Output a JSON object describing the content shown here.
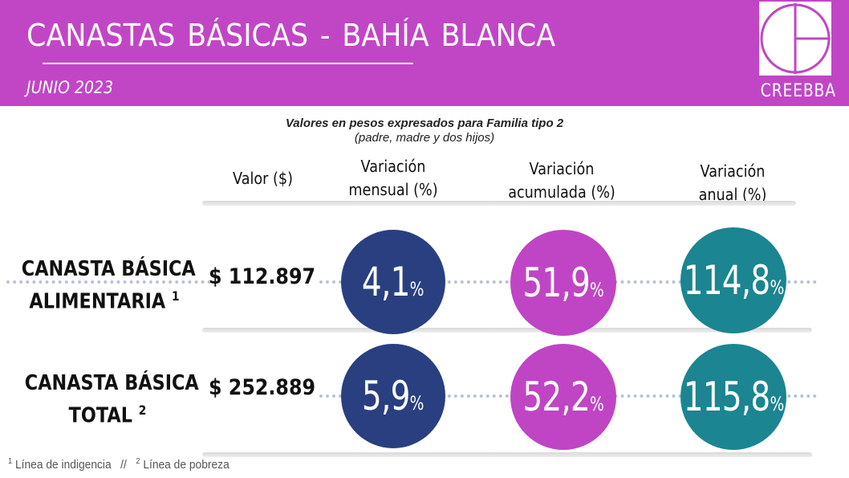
{
  "header": {
    "title": "CANASTAS  BÁSICAS - BAHÍA  BLANCA",
    "subtitle": "JUNIO 2023",
    "logo_text": "CREEBBA",
    "background_color": "#c146c6"
  },
  "notes": {
    "line1": "Valores en pesos expresados para Familia tipo 2",
    "line2": "(padre, madre y dos hijos)"
  },
  "columns": {
    "valor": "Valor ($)",
    "mensual_1": "Variación",
    "mensual_2": "mensual (%)",
    "acumulada_1": "Variación",
    "acumulada_2": "acumulada (%)",
    "anual_1": "Variación",
    "anual_2": "anual (%)"
  },
  "rows": [
    {
      "label_1": "CANASTA BÁSICA",
      "label_2": "ALIMENTARIA",
      "sup": "1",
      "value": "$ 112.897",
      "mensual": "4,1",
      "acumulada": "51,9",
      "anual": "114,8"
    },
    {
      "label_1": "CANASTA BÁSICA",
      "label_2": "TOTAL",
      "sup": "2",
      "value": "$ 252.889",
      "mensual": "5,9",
      "acumulada": "52,2",
      "anual": "115,8"
    }
  ],
  "percent_symbol": "%",
  "colors": {
    "mensual": "#293f80",
    "acumulada": "#bf45c5",
    "anual": "#1b8591"
  },
  "footnotes": {
    "sup1": "1",
    "text1": "Línea de indigencia",
    "separator": "//",
    "sup2": "2",
    "text2": "Línea de pobreza"
  }
}
